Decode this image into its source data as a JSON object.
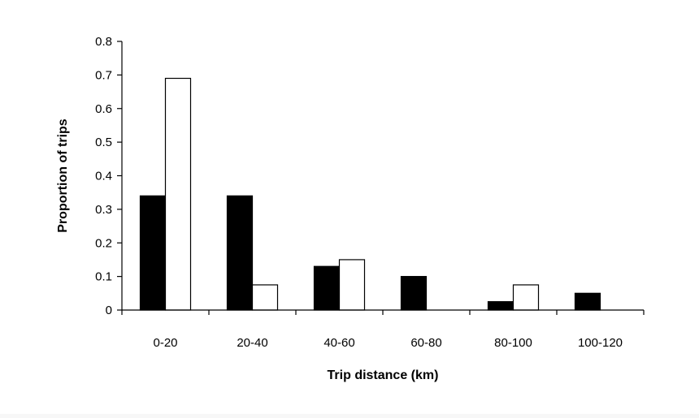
{
  "chart_data": {
    "type": "bar",
    "title": "",
    "xlabel": "Trip distance (km)",
    "ylabel": "Proportion of trips",
    "categories": [
      "0-20",
      "20-40",
      "40-60",
      "60-80",
      "80-100",
      "100-120"
    ],
    "ylim": [
      0,
      0.8
    ],
    "yticks": [
      "0",
      "0.1",
      "0.2",
      "0.3",
      "0.4",
      "0.5",
      "0.6",
      "0.7",
      "0.8"
    ],
    "series": [
      {
        "values": [
          0.34,
          0.34,
          0.13,
          0.1,
          0.025,
          0.05
        ],
        "color": "#000000"
      },
      {
        "values": [
          0.69,
          0.075,
          0.15,
          0,
          0.075,
          0
        ],
        "color": "#ffffff"
      }
    ],
    "grid": false,
    "legend": "none"
  }
}
